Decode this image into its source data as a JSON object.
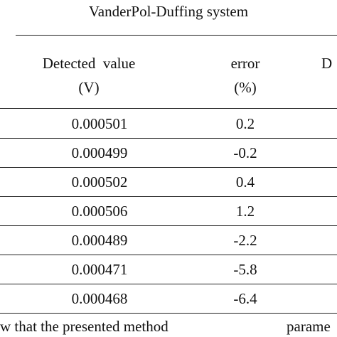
{
  "table": {
    "group_title": "VanderPol-Duffing system",
    "headers": {
      "detected_value": "Detected  value",
      "detected_value_unit": "(V)",
      "error": "error",
      "error_unit": "(%)",
      "next_col_fragment": "D"
    },
    "rows": [
      {
        "detected": "0.000501",
        "error": "0.2"
      },
      {
        "detected": "0.000499",
        "error": "-0.2"
      },
      {
        "detected": "0.000502",
        "error": "0.4"
      },
      {
        "detected": "0.000506",
        "error": "1.2"
      },
      {
        "detected": "0.000489",
        "error": "-2.2"
      },
      {
        "detected": "0.000471",
        "error": "-5.8"
      },
      {
        "detected": "0.000468",
        "error": "-6.4"
      }
    ]
  },
  "footer": {
    "left_text": "w that the presented method",
    "right_text": "parame"
  }
}
